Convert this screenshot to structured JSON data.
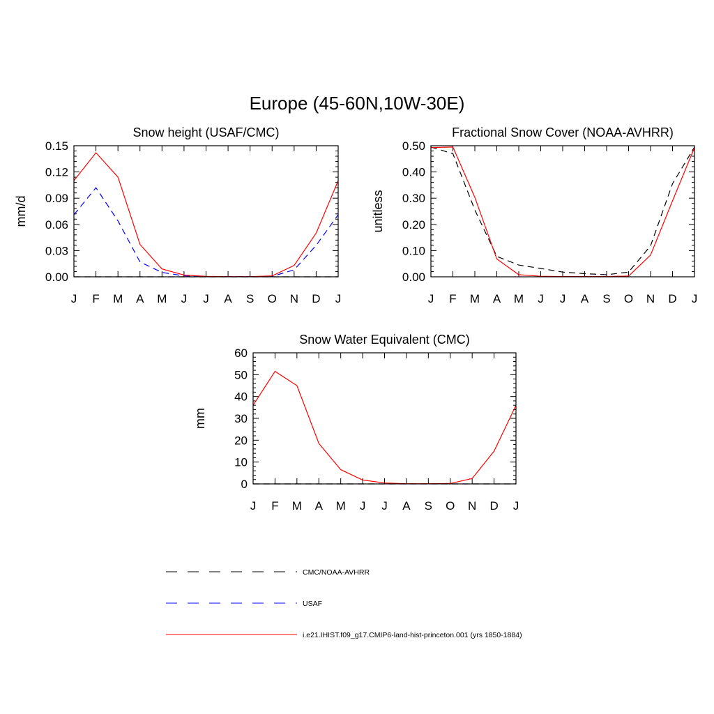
{
  "title": "Europe (45-60N,10W-30E)",
  "colors": {
    "model": "#ff0000",
    "cmc": "#000000",
    "usaf": "#0000ff"
  },
  "chart_data": [
    {
      "type": "line",
      "title": "Snow height (USAF/CMC)",
      "ylabel": "mm/d",
      "xlabel": "",
      "categories": [
        "J",
        "F",
        "M",
        "A",
        "M",
        "J",
        "J",
        "A",
        "S",
        "O",
        "N",
        "D",
        "J"
      ],
      "ylim": [
        0,
        0.15
      ],
      "yticks": [
        "0.00",
        "0.03",
        "0.06",
        "0.09",
        "0.12",
        "0.15"
      ],
      "grid": false,
      "series": [
        {
          "name": "i.e21.IHIST.f09_g17.CMIP6-land-hist-princeton.001 (yrs 1850-1884)",
          "style": "solid",
          "color": "#ff0000",
          "values": [
            0.11,
            0.142,
            0.114,
            0.037,
            0.009,
            0.002,
            0.0005,
            0.0002,
            0.0002,
            0.001,
            0.013,
            0.05,
            0.11
          ]
        },
        {
          "name": "USAF",
          "style": "dashed",
          "color": "#0000ff",
          "values": [
            0.071,
            0.102,
            0.064,
            0.017,
            0.005,
            0.001,
            0.0003,
            0.0002,
            0.0002,
            0.0005,
            0.008,
            0.036,
            0.071
          ]
        },
        {
          "name": "CMC/NOAA-AVHRR",
          "style": "dashed",
          "color": "#000000",
          "values": [
            0,
            0,
            0,
            0,
            0,
            0,
            0,
            0,
            0,
            0,
            0,
            0,
            0
          ]
        }
      ]
    },
    {
      "type": "line",
      "title": "Fractional Snow Cover (NOAA-AVHRR)",
      "ylabel": "unitless",
      "xlabel": "",
      "categories": [
        "J",
        "F",
        "M",
        "A",
        "M",
        "J",
        "J",
        "A",
        "S",
        "O",
        "N",
        "D",
        "J"
      ],
      "ylim": [
        0,
        0.5
      ],
      "yticks": [
        "0.00",
        "0.10",
        "0.20",
        "0.30",
        "0.40",
        "0.50"
      ],
      "grid": false,
      "series": [
        {
          "name": "i.e21.IHIST.f09_g17.CMIP6-land-hist-princeton.001 (yrs 1850-1884)",
          "style": "solid",
          "color": "#ff0000",
          "values": [
            0.493,
            0.495,
            0.303,
            0.068,
            0.008,
            0.002,
            0.001,
            0.001,
            0.001,
            0.003,
            0.083,
            0.29,
            0.493
          ]
        },
        {
          "name": "CMC/NOAA-AVHRR",
          "style": "dashed",
          "color": "#000000",
          "values": [
            0.495,
            0.47,
            0.255,
            0.078,
            0.045,
            0.032,
            0.018,
            0.012,
            0.008,
            0.018,
            0.118,
            0.355,
            0.495
          ]
        }
      ]
    },
    {
      "type": "line",
      "title": "Snow Water Equivalent (CMC)",
      "ylabel": "mm",
      "xlabel": "",
      "categories": [
        "J",
        "F",
        "M",
        "A",
        "M",
        "J",
        "J",
        "A",
        "S",
        "O",
        "N",
        "D",
        "J"
      ],
      "ylim": [
        0,
        60
      ],
      "yticks": [
        "0",
        "10",
        "20",
        "30",
        "40",
        "50",
        "60"
      ],
      "grid": false,
      "series": [
        {
          "name": "i.e21.IHIST.f09_g17.CMIP6-land-hist-princeton.001 (yrs 1850-1884)",
          "style": "solid",
          "color": "#ff0000",
          "values": [
            36.0,
            51.5,
            45.0,
            18.5,
            6.5,
            1.8,
            0.4,
            0.1,
            0.1,
            0.2,
            2.5,
            15.0,
            36.0
          ]
        },
        {
          "name": "CMC/NOAA-AVHRR",
          "style": "dashed",
          "color": "#000000",
          "values": [
            0,
            0,
            0,
            0,
            0,
            0,
            0,
            0,
            0,
            0,
            0,
            0,
            0
          ]
        }
      ]
    }
  ],
  "legend": [
    {
      "label": "CMC/NOAA-AVHRR",
      "style": "dashed",
      "color": "#000000"
    },
    {
      "label": "USAF",
      "style": "dashed",
      "color": "#0000ff"
    },
    {
      "label": "i.e21.IHIST.f09_g17.CMIP6-land-hist-princeton.001 (yrs 1850-1884)",
      "style": "solid",
      "color": "#ff0000"
    }
  ]
}
